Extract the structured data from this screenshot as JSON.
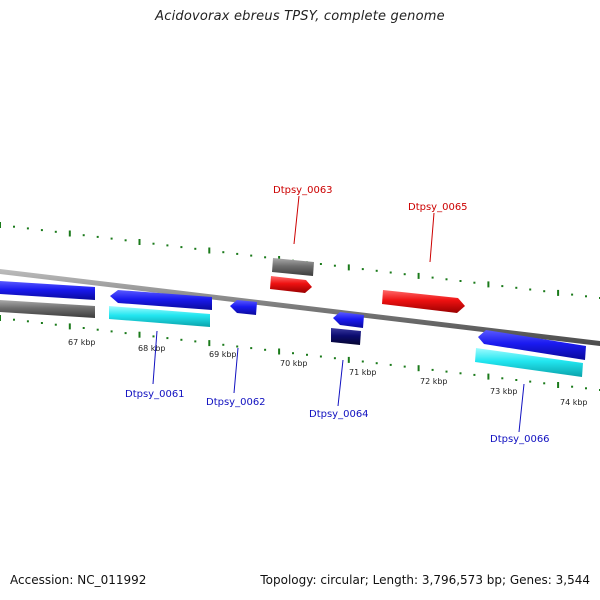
{
  "title": "Acidovorax ebreus TPSY, complete genome",
  "footer": {
    "accession": "Accession: NC_011992",
    "summary": "Topology: circular; Length: 3,796,573 bp; Genes: 3,544"
  },
  "colors": {
    "backbone": "#8a8a8a",
    "ticks": "#1a7a1a",
    "cds_blue": "#1a1af0",
    "cds_cyan": "#22e6f0",
    "cds_navy": "#0c0c70",
    "cds_red": "#ee1111",
    "cds_gray": "#6e6e6e",
    "label_blue": "#1010c0",
    "label_red": "#cc0000"
  },
  "kbp_labels": [
    "67 kbp",
    "68 kbp",
    "69 kbp",
    "70 kbp",
    "71 kbp",
    "72 kbp",
    "73 kbp",
    "74 kbp"
  ],
  "genes": [
    {
      "label": "Dtpsy_0061",
      "color": "label_blue"
    },
    {
      "label": "Dtpsy_0062",
      "color": "label_blue"
    },
    {
      "label": "Dtpsy_0063",
      "color": "label_red"
    },
    {
      "label": "Dtpsy_0064",
      "color": "label_blue"
    },
    {
      "label": "Dtpsy_0065",
      "color": "label_red"
    },
    {
      "label": "Dtpsy_0066",
      "color": "label_blue"
    }
  ]
}
